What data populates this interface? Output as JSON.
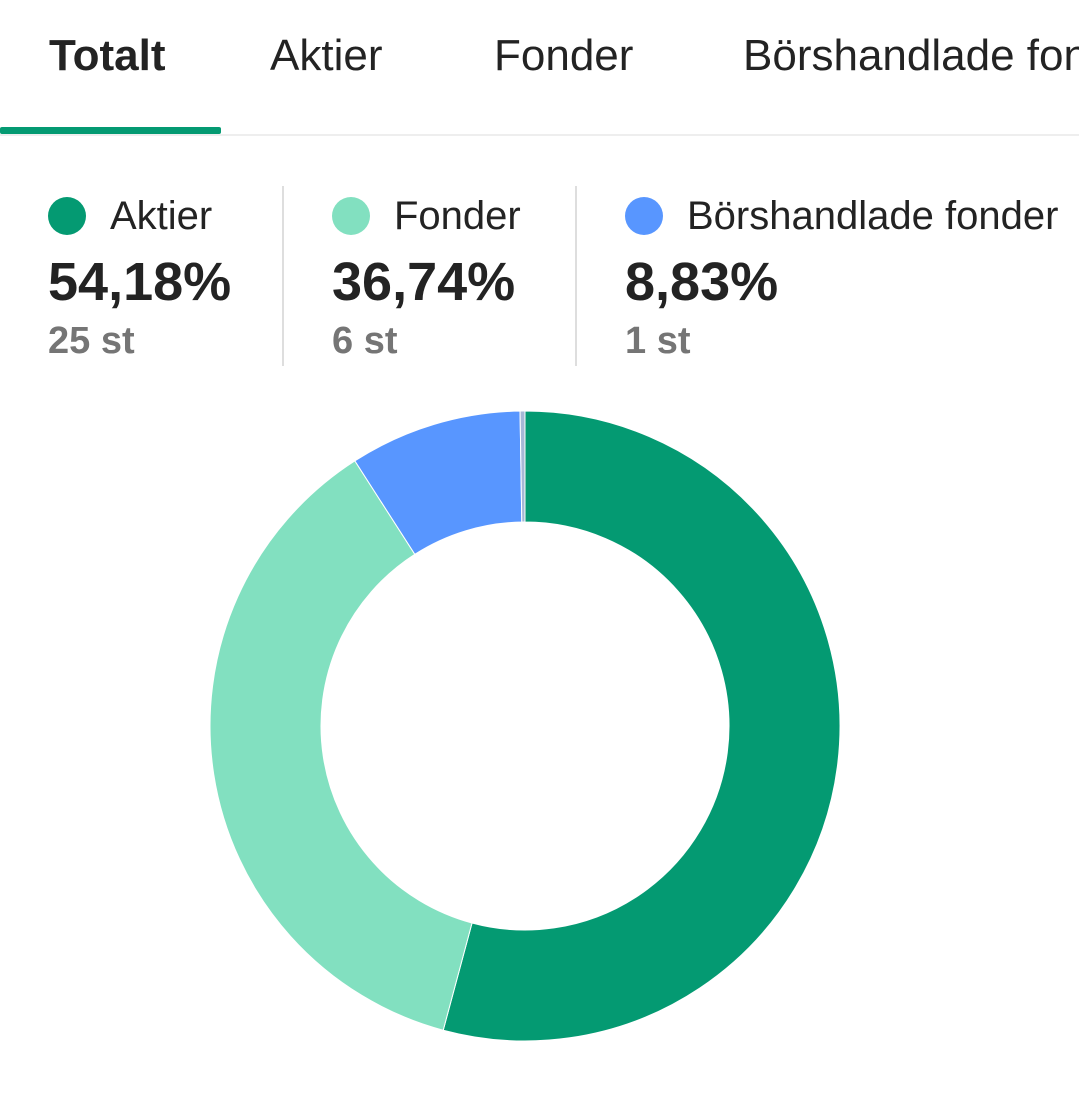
{
  "tabs": [
    {
      "label": "Totalt",
      "active": true
    },
    {
      "label": "Aktier",
      "active": false
    },
    {
      "label": "Fonder",
      "active": false
    },
    {
      "label": "Börshandlade fonder",
      "active": false
    }
  ],
  "colors": {
    "accent": "#049A72",
    "aktier": "#049A72",
    "fonder": "#82E0C0",
    "borshandlade": "#5896FF",
    "other": "#A6B8D6"
  },
  "legend": [
    {
      "name": "Aktier",
      "percent": "54,18%",
      "count": "25 st",
      "color": "#049A72"
    },
    {
      "name": "Fonder",
      "percent": "36,74%",
      "count": "6 st",
      "color": "#82E0C0"
    },
    {
      "name": "Börshandlade fonder",
      "percent": "8,83%",
      "count": "1 st",
      "color": "#5896FF"
    }
  ],
  "chart_data": {
    "type": "pie",
    "variant": "donut",
    "categories": [
      "Aktier",
      "Fonder",
      "Börshandlade fonder",
      ""
    ],
    "values": [
      54.18,
      36.74,
      8.83,
      0.25
    ],
    "colors": [
      "#049A72",
      "#82E0C0",
      "#5896FF",
      "#A6B8D6"
    ],
    "start": "top",
    "direction": "clockwise"
  }
}
